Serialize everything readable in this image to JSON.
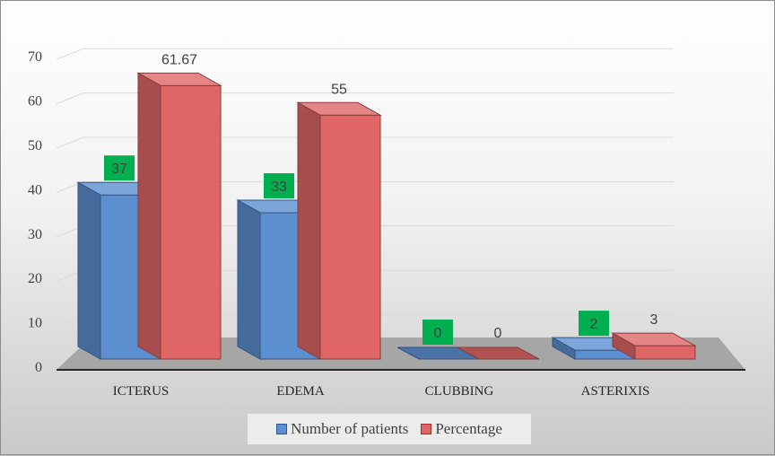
{
  "chart_data": {
    "type": "bar",
    "categories": [
      "ICTERUS",
      "EDEMA",
      "CLUBBING",
      "ASTERIXIS"
    ],
    "series": [
      {
        "name": "Number of patients",
        "values": [
          37,
          33,
          0,
          2
        ],
        "labels": [
          "37",
          "33",
          "0",
          "2"
        ],
        "color": "#5b8fd0",
        "label_bg": "#00b050"
      },
      {
        "name": "Percentage",
        "values": [
          61.67,
          55,
          0,
          3
        ],
        "labels": [
          "61.67",
          "55",
          "0",
          "3"
        ],
        "color": "#e06666",
        "label_bg": ""
      }
    ],
    "ylim": [
      0,
      70
    ],
    "yticks": [
      "0",
      "10",
      "20",
      "30",
      "40",
      "50",
      "60",
      "70"
    ],
    "grid": true,
    "legend_position": "bottom",
    "style": "3d-column"
  }
}
